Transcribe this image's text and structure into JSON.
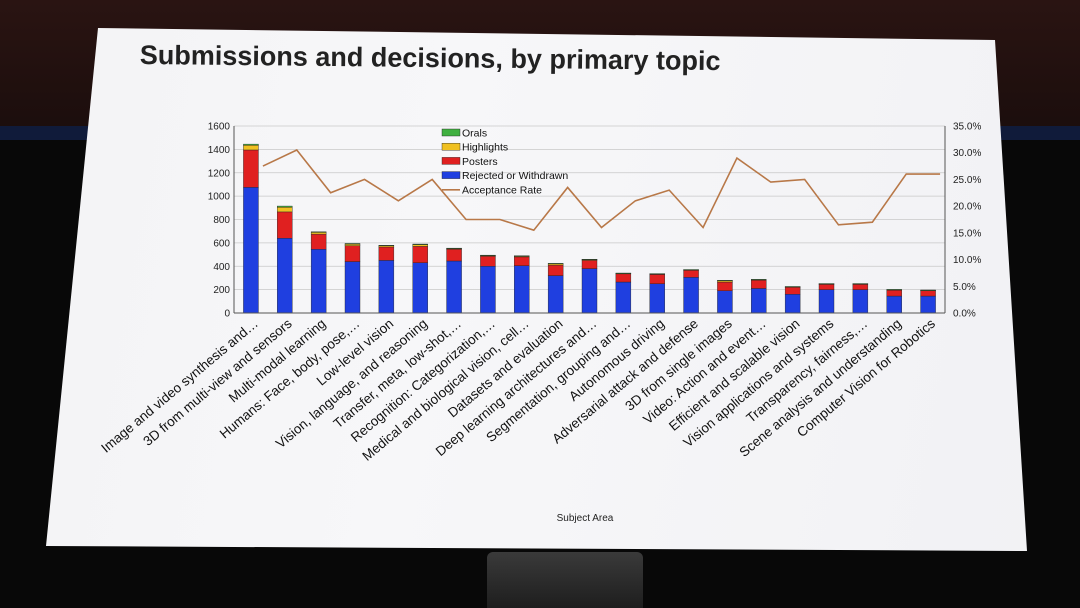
{
  "slide": {
    "title": "Submissions and decisions, by primary topic"
  },
  "colors": {
    "rejected": "#1f3fe0",
    "posters": "#e02020",
    "highlights": "#f0c020",
    "orals": "#40b040",
    "acceptance": "#b87848"
  },
  "chart_data": {
    "type": "bar",
    "stacked": true,
    "xlabel": "Subject Area",
    "ylabel": "",
    "ylim": [
      0,
      1600
    ],
    "y2lim": [
      0,
      35
    ],
    "yticks": [
      "0",
      "200",
      "400",
      "600",
      "800",
      "1000",
      "1200",
      "1400",
      "1600"
    ],
    "y2ticks": [
      "0.0%",
      "5.0%",
      "10.0%",
      "15.0%",
      "20.0%",
      "25.0%",
      "30.0%",
      "35.0%"
    ],
    "legend_position": "top-left",
    "legend": [
      "Orals",
      "Highlights",
      "Posters",
      "Rejected or Withdrawn",
      "Acceptance Rate"
    ],
    "categories": [
      "Image and video synthesis and…",
      "3D from multi-view and sensors",
      "Multi-modal learning",
      "Humans: Face, body, pose,…",
      "Low-level vision",
      "Vision, language, and reasoning",
      "Transfer, meta, low-shot,…",
      "Recognition: Categorization,…",
      "Medical and biological vision, cell…",
      "Datasets and evaluation",
      "Deep learning architectures and…",
      "Segmentation, grouping and…",
      "Autonomous driving",
      "Adversarial attack and defense",
      "3D from single images",
      "Video: Action and event…",
      "Efficient and scalable vision",
      "Vision applications and systems",
      "Transparency, fairness,…",
      "Scene analysis and understanding",
      "Computer Vision for Robotics"
    ],
    "series": [
      {
        "name": "Rejected or Withdrawn",
        "values": [
          1075,
          640,
          545,
          440,
          450,
          430,
          445,
          400,
          405,
          320,
          380,
          265,
          250,
          305,
          190,
          210,
          160,
          200,
          200,
          145,
          145
        ]
      },
      {
        "name": "Posters",
        "values": [
          320,
          225,
          130,
          135,
          115,
          140,
          100,
          85,
          75,
          90,
          70,
          70,
          80,
          60,
          75,
          70,
          60,
          45,
          45,
          50,
          45
        ]
      },
      {
        "name": "Highlights",
        "values": [
          40,
          40,
          15,
          15,
          10,
          15,
          8,
          8,
          8,
          12,
          8,
          5,
          5,
          5,
          12,
          6,
          5,
          5,
          5,
          5,
          5
        ]
      },
      {
        "name": "Orals",
        "values": [
          10,
          10,
          5,
          5,
          5,
          5,
          2,
          2,
          2,
          3,
          2,
          2,
          2,
          2,
          3,
          2,
          2,
          2,
          2,
          2,
          2
        ]
      },
      {
        "name": "Acceptance Rate",
        "axis": "right",
        "values": [
          27.5,
          30.5,
          22.5,
          25.0,
          21.0,
          25.0,
          17.5,
          17.5,
          15.5,
          23.5,
          16.0,
          21.0,
          23.0,
          16.0,
          29.0,
          24.5,
          25.0,
          16.5,
          17.0,
          26.0,
          26.0
        ]
      }
    ]
  }
}
